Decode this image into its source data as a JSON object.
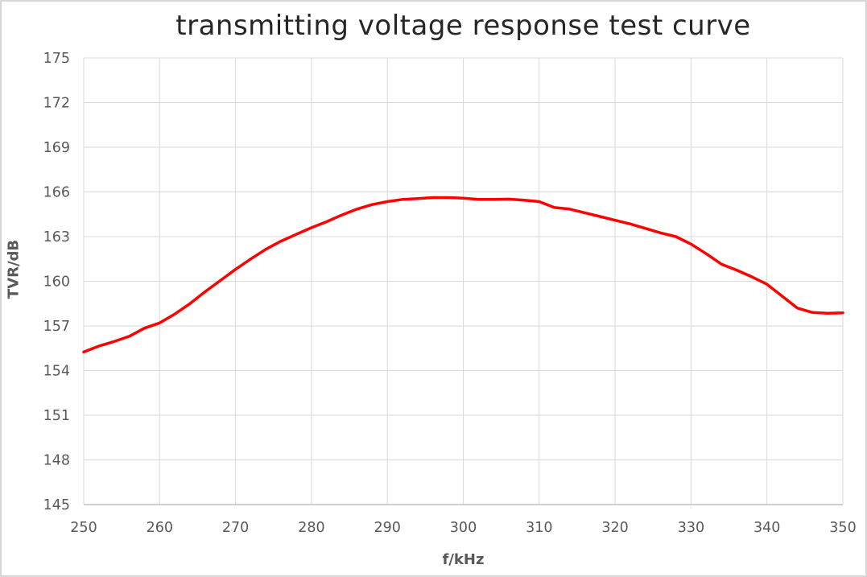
{
  "chart_data": {
    "type": "line",
    "title": "transmitting voltage response test curve",
    "xlabel": "f/kHz",
    "ylabel": "TVR/dB",
    "xlim": [
      250,
      350
    ],
    "ylim": [
      145,
      175
    ],
    "x_ticks": [
      250,
      260,
      270,
      280,
      290,
      300,
      310,
      320,
      330,
      340,
      350
    ],
    "y_ticks": [
      145,
      148,
      151,
      154,
      157,
      160,
      163,
      166,
      169,
      172,
      175
    ],
    "grid": true,
    "legend": false,
    "series": [
      {
        "name": "TVR",
        "color": "#FF0000",
        "x": [
          250,
          252,
          254,
          256,
          258,
          260,
          262,
          264,
          266,
          268,
          270,
          272,
          274,
          276,
          278,
          280,
          282,
          284,
          286,
          288,
          290,
          292,
          294,
          296,
          298,
          300,
          302,
          304,
          306,
          308,
          310,
          312,
          314,
          316,
          318,
          320,
          322,
          324,
          326,
          328,
          330,
          332,
          334,
          336,
          338,
          340,
          342,
          344,
          346,
          348,
          350
        ],
        "y": [
          155.25,
          155.65,
          155.95,
          156.3,
          156.85,
          157.2,
          157.8,
          158.5,
          159.3,
          160.05,
          160.8,
          161.5,
          162.15,
          162.7,
          163.15,
          163.6,
          164.0,
          164.45,
          164.85,
          165.15,
          165.35,
          165.5,
          165.55,
          165.62,
          165.62,
          165.58,
          165.5,
          165.5,
          165.52,
          165.45,
          165.35,
          164.95,
          164.85,
          164.6,
          164.35,
          164.1,
          163.85,
          163.55,
          163.25,
          163.0,
          162.5,
          161.85,
          161.15,
          160.75,
          160.3,
          159.8,
          159.0,
          158.2,
          157.9,
          157.85,
          157.88
        ]
      }
    ],
    "colors": {
      "gridline": "#D9D9D9",
      "axis_line": "#BFBFBF",
      "tick_label": "#595959",
      "title": "#262626",
      "background": "#FFFFFF",
      "border": "#D6D6D6"
    }
  }
}
